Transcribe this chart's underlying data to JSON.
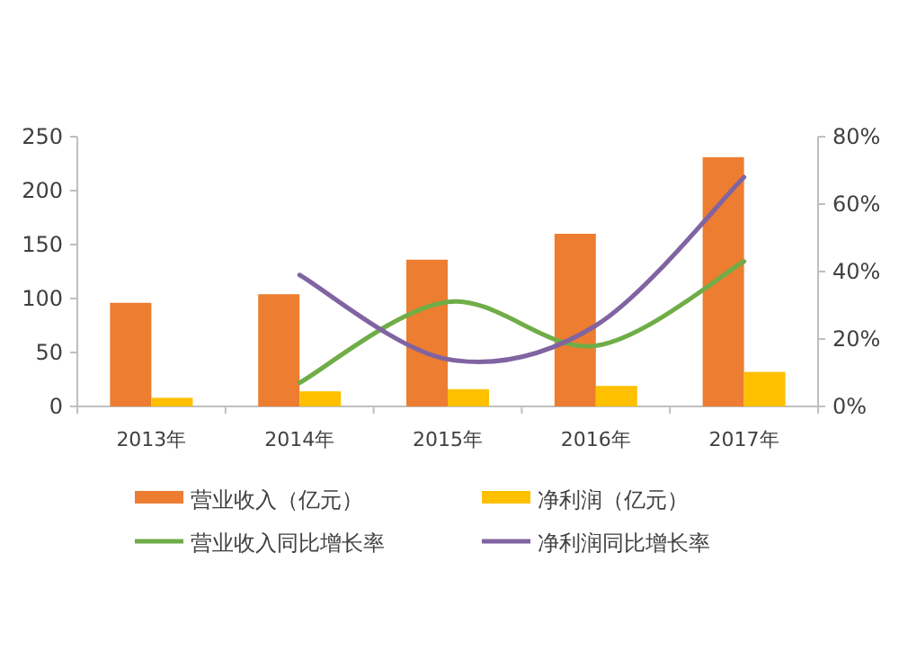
{
  "chart_data": {
    "type": "bar",
    "categories": [
      "2013年",
      "2014年",
      "2015年",
      "2016年",
      "2017年"
    ],
    "series": [
      {
        "name": "营业收入（亿元）",
        "color": "#ed7d31",
        "values": [
          96,
          104,
          136,
          160,
          231
        ]
      },
      {
        "name": "净利润（亿元）",
        "color": "#ffc000",
        "values": [
          8,
          14,
          16,
          19,
          32
        ]
      },
      {
        "name": "营业收入同比增长率",
        "type": "line",
        "axis": "y2",
        "color": "#70ad47",
        "values": [
          null,
          7,
          31,
          18,
          43
        ]
      },
      {
        "name": "净利润同比增长率",
        "type": "line",
        "axis": "y2",
        "color": "#8064a2",
        "values": [
          null,
          39,
          14,
          24,
          68
        ]
      }
    ],
    "ylim": [
      0,
      250
    ],
    "yticks": [
      0,
      50,
      100,
      150,
      200,
      250
    ],
    "y2lim": [
      0,
      80
    ],
    "y2ticks": [
      {
        "value": 0,
        "label": "0%"
      },
      {
        "value": 20,
        "label": "20%"
      },
      {
        "value": 40,
        "label": "40%"
      },
      {
        "value": 60,
        "label": "60%"
      },
      {
        "value": 80,
        "label": "80%"
      }
    ],
    "legend": "bottom",
    "grid": false
  }
}
